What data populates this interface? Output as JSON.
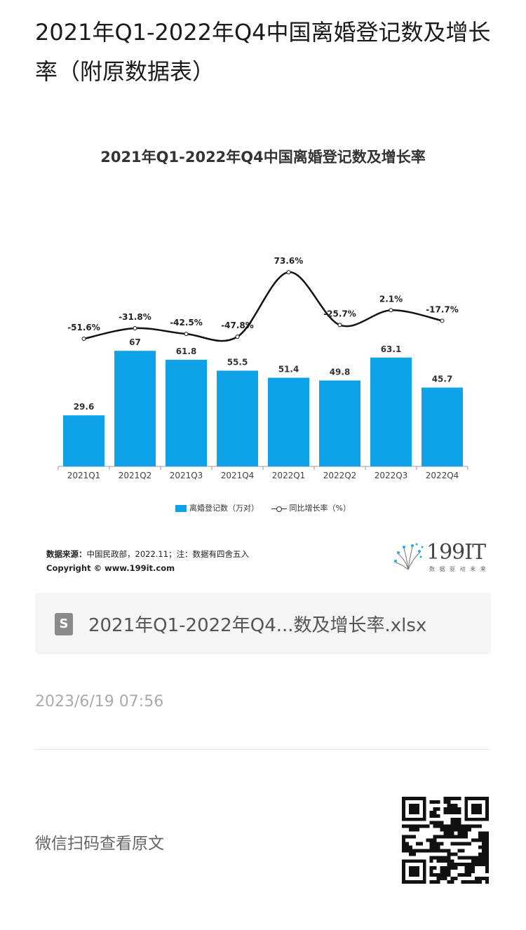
{
  "page_title": "2021年Q1-2022年Q4中国离婚登记数及增长率（附原数据表）",
  "chart_data": {
    "type": "bar",
    "title": "2021年Q1-2022年Q4中国离婚登记数及增长率",
    "categories": [
      "2021Q1",
      "2021Q2",
      "2021Q3",
      "2021Q4",
      "2022Q1",
      "2022Q2",
      "2022Q3",
      "2022Q4"
    ],
    "series": [
      {
        "name": "离婚登记数（万对）",
        "type": "bar",
        "color": "#0ea3e8",
        "values": [
          29.6,
          67,
          61.8,
          55.5,
          51.4,
          49.8,
          63.1,
          45.7
        ],
        "labels": [
          "29.6",
          "67",
          "61.8",
          "55.5",
          "51.4",
          "49.8",
          "63.1",
          "45.7"
        ]
      },
      {
        "name": "同比增长率（%）",
        "type": "line",
        "color": "#111111",
        "values": [
          -51.6,
          -31.8,
          -42.5,
          -47.8,
          73.6,
          -25.7,
          2.1,
          -17.7
        ],
        "labels": [
          "-51.6%",
          "-31.8%",
          "-42.5%",
          "-47.8%",
          "73.6%",
          "-25.7%",
          "2.1%",
          "-17.7%"
        ]
      }
    ],
    "legend": [
      "离婚登记数（万对）",
      "同比增长率（%）"
    ],
    "legend_position": "bottom"
  },
  "source": {
    "label": "数据来源：",
    "text": "中国民政部，2022.11；注：数据有四舍五入",
    "copyright": "Copyright © www.199it.com"
  },
  "logo": {
    "text": "199IT",
    "sub": "数 据 驱 动 未 来"
  },
  "file": {
    "icon": "S",
    "name": "2021年Q1-2022年Q4...数及增长率.xlsx"
  },
  "timestamp": "2023/6/19 07:56",
  "scan_text": "微信扫码查看原文"
}
